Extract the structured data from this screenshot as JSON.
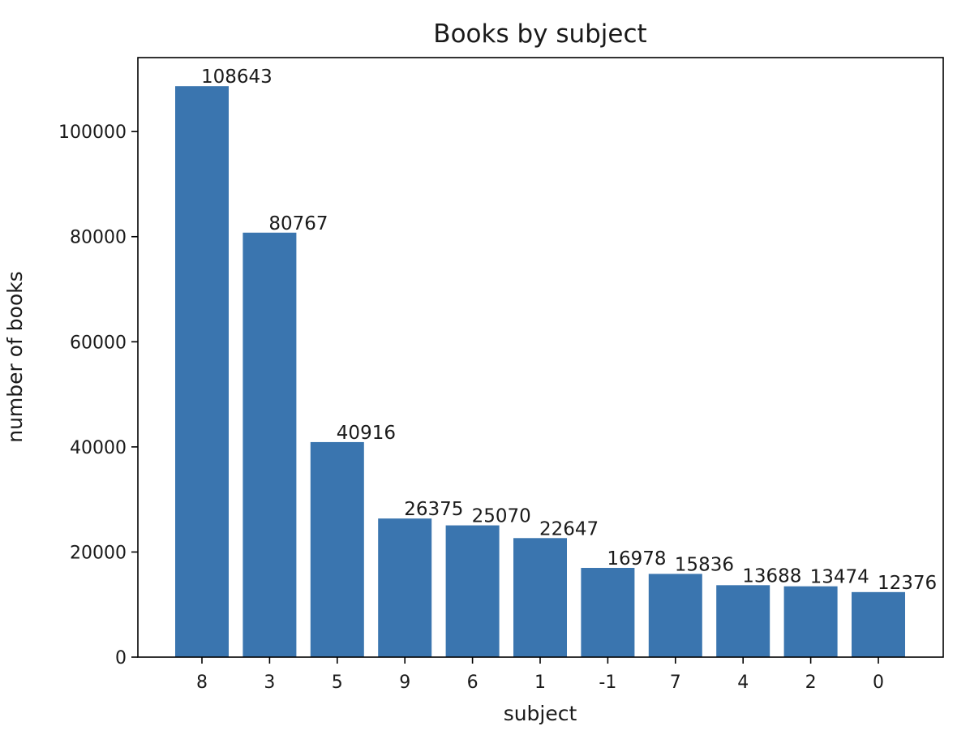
{
  "chart_data": {
    "type": "bar",
    "title": "Books by subject",
    "xlabel": "subject",
    "ylabel": "number of books",
    "categories": [
      "8",
      "3",
      "5",
      "9",
      "6",
      "1",
      "-1",
      "7",
      "4",
      "2",
      "0"
    ],
    "values": [
      108643,
      80767,
      40916,
      26375,
      25070,
      22647,
      16978,
      15836,
      13688,
      13474,
      12376
    ],
    "data_labels": [
      "108643",
      "80767",
      "40916",
      "26375",
      "25070",
      "22647",
      "16978",
      "15836",
      "13688",
      "13474",
      "12376"
    ],
    "ylim": [
      0,
      114075
    ],
    "yticks": [
      0,
      20000,
      40000,
      60000,
      80000,
      100000
    ],
    "ytick_labels": [
      "0",
      "20000",
      "40000",
      "60000",
      "80000",
      "100000"
    ],
    "bar_color": "#3a75af",
    "grid": false,
    "legend": "none"
  }
}
